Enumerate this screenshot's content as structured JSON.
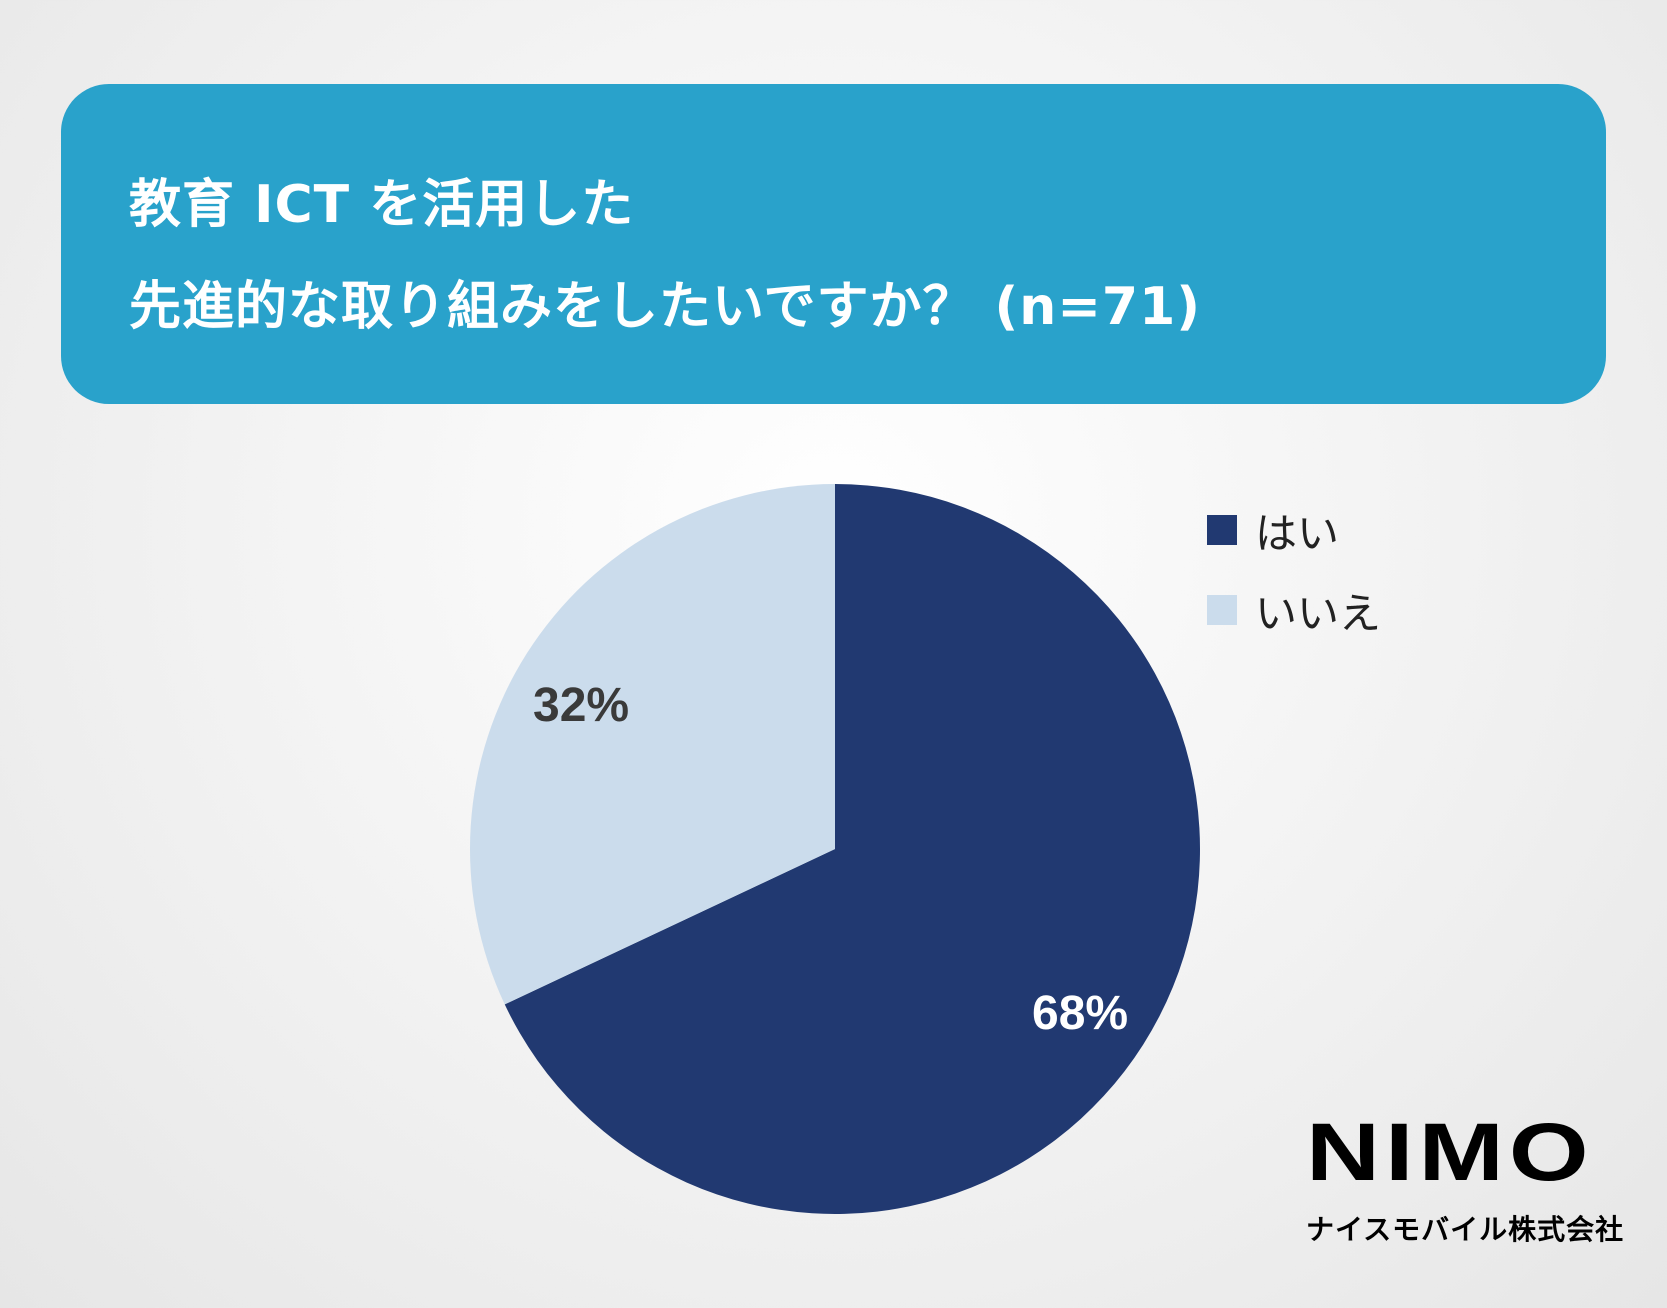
{
  "title": {
    "line1": "教育 ICT を活用した",
    "line2": "先進的な取り組みをしたいですか？ (n=71)"
  },
  "chart_data": {
    "type": "pie",
    "title": "教育 ICT を活用した先進的な取り組みをしたいですか？ (n=71)",
    "categories": [
      "はい",
      "いいえ"
    ],
    "values": [
      68,
      32
    ],
    "unit": "%",
    "labels": [
      "68%",
      "32%"
    ],
    "colors": [
      "#213971",
      "#cbdcec"
    ],
    "start_angle": "12 o'clock",
    "direction": "clockwise",
    "legend_position": "right-top",
    "sample_size": 71
  },
  "legend": {
    "items": [
      {
        "label": "はい",
        "color": "#213971"
      },
      {
        "label": "いいえ",
        "color": "#cbdcec"
      }
    ]
  },
  "labels": {
    "yes": "68%",
    "no": "32%"
  },
  "logo": {
    "main": "NIMO",
    "sub": "ナイスモバイル株式会社"
  },
  "colors": {
    "header": "#29a2cb"
  }
}
